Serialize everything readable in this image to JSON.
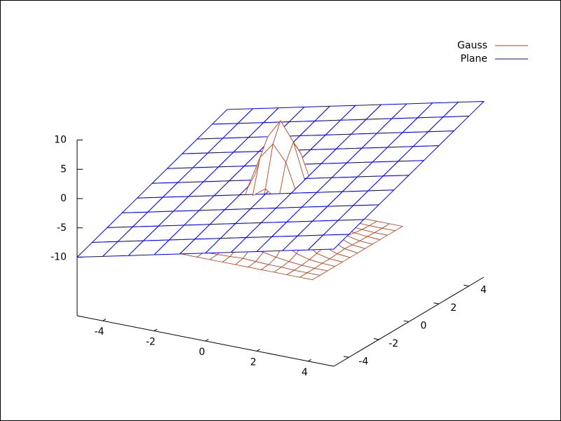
{
  "chart_data": {
    "type": "surface",
    "xlim": [
      -5,
      5
    ],
    "ylim": [
      -5,
      5
    ],
    "zlim": [
      -10,
      10
    ],
    "xticks": [
      -4,
      -2,
      0,
      2,
      4
    ],
    "yticks": [
      -4,
      -2,
      0,
      2,
      4
    ],
    "zticks": [
      -10,
      -5,
      0,
      5,
      10
    ],
    "legend": "top right",
    "series": [
      {
        "name": "Gauss",
        "color": "#b3401a",
        "x": [
          -3,
          -2.5,
          -2,
          -1.5,
          -1,
          -0.5,
          0,
          0.5,
          1,
          1.5,
          2,
          2.5,
          3
        ],
        "y": [
          -3,
          -2.5,
          -2,
          -1.5,
          -1,
          -0.5,
          0,
          0.5,
          1,
          1.5,
          2,
          2.5,
          3
        ],
        "z": [
          [
            -10,
            -10,
            -10,
            -10,
            -10,
            -10,
            -10,
            -10,
            -10,
            -10,
            -10,
            -10,
            -10
          ],
          [
            -10,
            -10,
            -10,
            -9.9,
            -9.9,
            -9.8,
            -9.7,
            -9.8,
            -9.9,
            -9.9,
            -10,
            -10,
            -10
          ],
          [
            -10,
            -10,
            -9.9,
            -9.7,
            -9.4,
            -9.0,
            -8.8,
            -9.0,
            -9.4,
            -9.7,
            -9.9,
            -10,
            -10
          ],
          [
            -10,
            -9.9,
            -9.7,
            -9.1,
            -7.9,
            -6.5,
            -5.9,
            -6.5,
            -7.9,
            -9.1,
            -9.7,
            -9.9,
            -10
          ],
          [
            -10,
            -9.9,
            -9.4,
            -7.9,
            -5.1,
            -1.7,
            -0.1,
            -1.7,
            -5.1,
            -7.9,
            -9.4,
            -9.9,
            -10
          ],
          [
            -10,
            -9.8,
            -9.0,
            -6.5,
            -1.7,
            4.1,
            6.8,
            4.1,
            -1.7,
            -6.5,
            -9.0,
            -9.8,
            -10
          ],
          [
            -10,
            -9.7,
            -8.8,
            -5.9,
            -0.1,
            6.8,
            10,
            6.8,
            -0.1,
            -5.9,
            -8.8,
            -9.7,
            -10
          ],
          [
            -10,
            -9.8,
            -9.0,
            -6.5,
            -1.7,
            4.1,
            6.8,
            4.1,
            -1.7,
            -6.5,
            -9.0,
            -9.8,
            -10
          ],
          [
            -10,
            -9.9,
            -9.4,
            -7.9,
            -5.1,
            -1.7,
            -0.1,
            -1.7,
            -5.1,
            -7.9,
            -9.4,
            -9.9,
            -10
          ],
          [
            -10,
            -9.9,
            -9.7,
            -9.1,
            -7.9,
            -6.5,
            -5.9,
            -6.5,
            -7.9,
            -9.1,
            -9.7,
            -9.9,
            -10
          ],
          [
            -10,
            -10,
            -9.9,
            -9.7,
            -9.4,
            -9.0,
            -8.8,
            -9.0,
            -9.4,
            -9.7,
            -9.9,
            -10,
            -10
          ],
          [
            -10,
            -10,
            -10,
            -9.9,
            -9.9,
            -9.8,
            -9.7,
            -9.8,
            -9.9,
            -9.9,
            -10,
            -10,
            -10
          ],
          [
            -10,
            -10,
            -10,
            -10,
            -10,
            -10,
            -10,
            -10,
            -10,
            -10,
            -10,
            -10,
            -10
          ]
        ]
      },
      {
        "name": "Plane",
        "color": "#0000ff",
        "x": [
          -5,
          -4,
          -3,
          -2,
          -1,
          0,
          1,
          2,
          3,
          4,
          5
        ],
        "y": [
          -5,
          -4,
          -3,
          -2,
          -1,
          0,
          1,
          2,
          3,
          4,
          5
        ],
        "z": [
          [
            -10,
            -9,
            -8,
            -7,
            -6,
            -5,
            -4,
            -3,
            -2,
            -1,
            0
          ],
          [
            -9,
            -8,
            -7,
            -6,
            -5,
            -4,
            -3,
            -2,
            -1,
            0,
            1
          ],
          [
            -8,
            -7,
            -6,
            -5,
            -4,
            -3,
            -2,
            -1,
            0,
            1,
            2
          ],
          [
            -7,
            -6,
            -5,
            -4,
            -3,
            -2,
            -1,
            0,
            1,
            2,
            3
          ],
          [
            -6,
            -5,
            -4,
            -3,
            -2,
            -1,
            0,
            1,
            2,
            3,
            4
          ],
          [
            -5,
            -4,
            -3,
            -2,
            -1,
            0,
            1,
            2,
            3,
            4,
            5
          ],
          [
            -4,
            -3,
            -2,
            -1,
            0,
            1,
            2,
            3,
            4,
            5,
            6
          ],
          [
            -3,
            -2,
            -1,
            0,
            1,
            2,
            3,
            4,
            5,
            6,
            7
          ],
          [
            -2,
            -1,
            0,
            1,
            2,
            3,
            4,
            5,
            6,
            7,
            8
          ],
          [
            -1,
            0,
            1,
            2,
            3,
            4,
            5,
            6,
            7,
            8,
            9
          ],
          [
            0,
            1,
            2,
            3,
            4,
            5,
            6,
            7,
            8,
            9,
            10
          ]
        ]
      }
    ]
  }
}
